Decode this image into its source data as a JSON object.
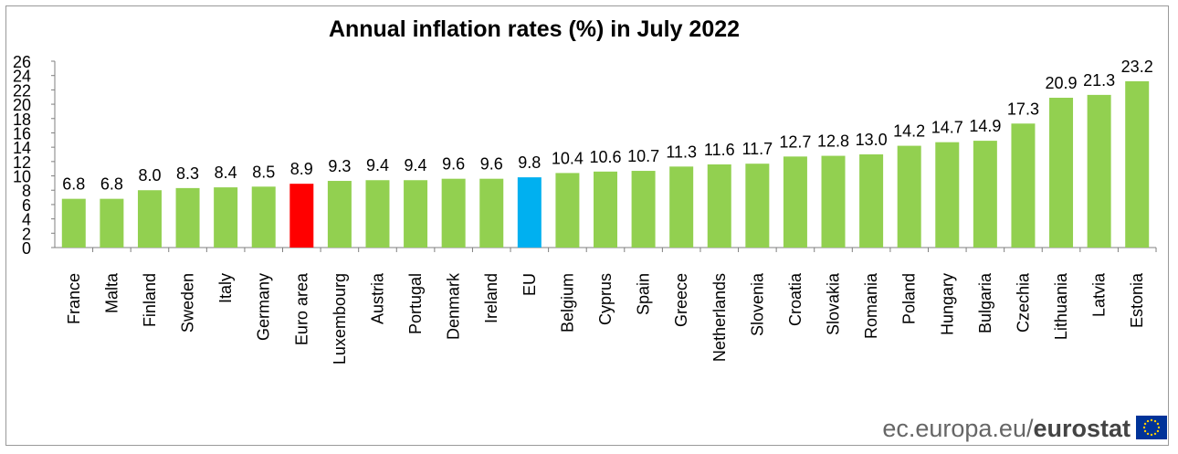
{
  "chart_data": {
    "type": "bar",
    "title": "Annual inflation rates (%)  in July 2022",
    "categories": [
      "France",
      "Malta",
      "Finland",
      "Sweden",
      "Italy",
      "Germany",
      "Euro area",
      "Luxembourg",
      "Austria",
      "Portugal",
      "Denmark",
      "Ireland",
      "EU",
      "Belgium",
      "Cyprus",
      "Spain",
      "Greece",
      "Netherlands",
      "Slovenia",
      "Croatia",
      "Slovakia",
      "Romania",
      "Poland",
      "Hungary",
      "Bulgaria",
      "Czechia",
      "Lithuania",
      "Latvia",
      "Estonia"
    ],
    "values": [
      6.8,
      6.8,
      8.0,
      8.3,
      8.4,
      8.5,
      8.9,
      9.3,
      9.4,
      9.4,
      9.6,
      9.6,
      9.8,
      10.4,
      10.6,
      10.7,
      11.3,
      11.6,
      11.7,
      12.7,
      12.8,
      13.0,
      14.2,
      14.7,
      14.9,
      17.3,
      20.9,
      21.3,
      23.2
    ],
    "value_labels": [
      "6.8",
      "6.8",
      "8.0",
      "8.3",
      "8.4",
      "8.5",
      "8.9",
      "9.3",
      "9.4",
      "9.4",
      "9.6",
      "9.6",
      "9.8",
      "10.4",
      "10.6",
      "10.7",
      "11.3",
      "11.6",
      "11.7",
      "12.7",
      "12.8",
      "13.0",
      "14.2",
      "14.7",
      "14.9",
      "17.3",
      "20.9",
      "21.3",
      "23.2"
    ],
    "highlight": {
      "Euro area": "#ff0000",
      "EU": "#00b0f0"
    },
    "default_color": "#92d050",
    "ylim": [
      0,
      26
    ],
    "yticks": [
      0,
      2,
      4,
      6,
      8,
      10,
      12,
      14,
      16,
      18,
      20,
      22,
      24,
      26
    ],
    "xlabel": "",
    "ylabel": "",
    "grid": false,
    "legend": "none"
  },
  "footer": {
    "site": "ec.europa.eu/",
    "brand": "eurostat"
  },
  "colors": {
    "flag_blue": "#003399",
    "flag_star": "#ffcc00"
  }
}
